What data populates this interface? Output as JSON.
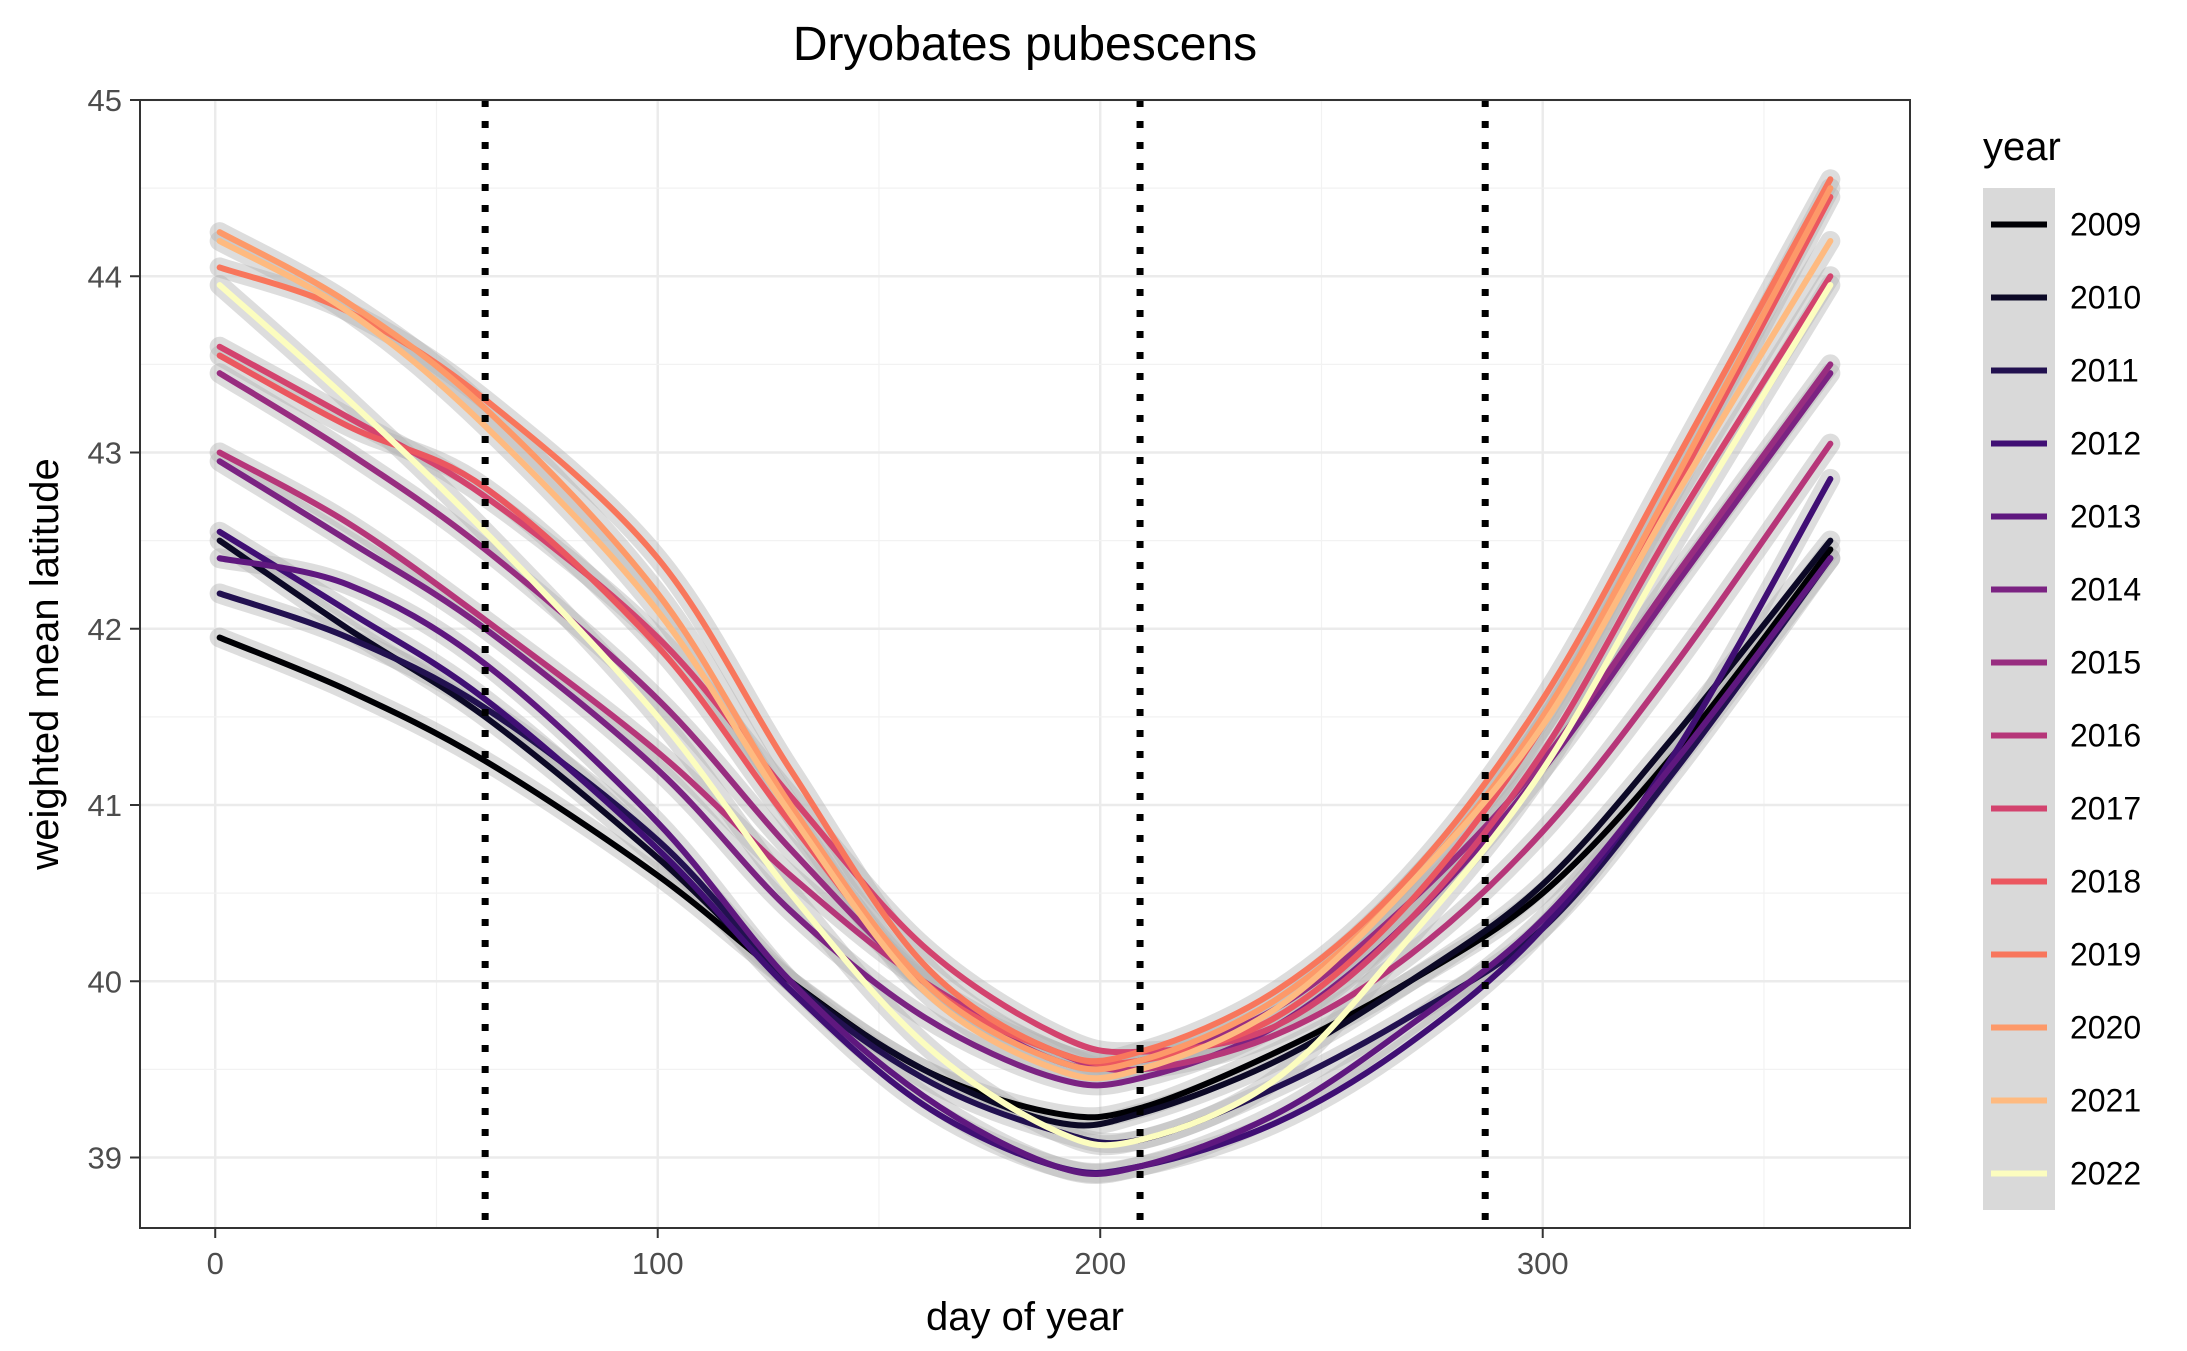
{
  "chart_data": {
    "type": "line",
    "title": "Dryobates pubescens",
    "xlabel": "day of year",
    "ylabel": "weighted mean latitude",
    "xlim": [
      -17,
      383
    ],
    "ylim": [
      38.6,
      45
    ],
    "x_ticks": [
      0,
      100,
      200,
      300
    ],
    "y_ticks": [
      39,
      40,
      41,
      42,
      43,
      44,
      45
    ],
    "grid": true,
    "confidence_bands": true,
    "vertical_lines": [
      61,
      209,
      287
    ],
    "legend": {
      "title": "year",
      "position": "right"
    },
    "x": [
      1,
      30,
      61,
      100,
      130,
      160,
      190,
      209,
      240,
      270,
      300,
      330,
      365
    ],
    "series": [
      {
        "name": "2009",
        "color": "#000004",
        "values": [
          41.95,
          41.65,
          41.25,
          40.6,
          40.0,
          39.5,
          39.25,
          39.28,
          39.6,
          40.0,
          40.5,
          41.3,
          42.45
        ]
      },
      {
        "name": "2010",
        "color": "#0C0926",
        "values": [
          42.5,
          42.0,
          41.5,
          40.7,
          40.0,
          39.5,
          39.2,
          39.25,
          39.55,
          40.0,
          40.55,
          41.4,
          42.5
        ]
      },
      {
        "name": "2011",
        "color": "#221150",
        "values": [
          42.2,
          41.95,
          41.55,
          40.8,
          40.0,
          39.45,
          39.15,
          39.1,
          39.4,
          39.8,
          40.3,
          41.2,
          42.4
        ]
      },
      {
        "name": "2012",
        "color": "#400F74",
        "values": [
          42.55,
          42.1,
          41.6,
          40.75,
          39.95,
          39.3,
          38.95,
          38.95,
          39.2,
          39.65,
          40.3,
          41.3,
          42.85
        ]
      },
      {
        "name": "2013",
        "color": "#5F187F",
        "values": [
          42.4,
          42.25,
          41.8,
          40.9,
          40.0,
          39.35,
          38.95,
          38.95,
          39.25,
          39.75,
          40.35,
          41.25,
          42.4
        ]
      },
      {
        "name": "2014",
        "color": "#7B2382",
        "values": [
          42.95,
          42.5,
          42.0,
          41.2,
          40.4,
          39.8,
          39.45,
          39.45,
          39.75,
          40.35,
          41.2,
          42.25,
          43.45
        ]
      },
      {
        "name": "2015",
        "color": "#982D80",
        "values": [
          43.45,
          43.0,
          42.45,
          41.6,
          40.75,
          40.0,
          39.55,
          39.55,
          39.85,
          40.45,
          41.25,
          42.3,
          43.5
        ]
      },
      {
        "name": "2016",
        "color": "#B63679",
        "values": [
          43.0,
          42.6,
          42.05,
          41.3,
          40.6,
          40.0,
          39.6,
          39.5,
          39.7,
          40.15,
          40.85,
          41.8,
          43.05
        ]
      },
      {
        "name": "2017",
        "color": "#D3436E",
        "values": [
          43.6,
          43.2,
          42.75,
          41.95,
          41.05,
          40.2,
          39.7,
          39.6,
          39.75,
          40.35,
          41.3,
          42.6,
          44.0
        ]
      },
      {
        "name": "2018",
        "color": "#EB5760",
        "values": [
          43.55,
          43.15,
          42.8,
          41.9,
          40.9,
          40.0,
          39.6,
          39.55,
          39.8,
          40.45,
          41.45,
          42.8,
          44.45
        ]
      },
      {
        "name": "2019",
        "color": "#F8765C",
        "values": [
          44.05,
          43.8,
          43.3,
          42.4,
          41.2,
          40.1,
          39.6,
          39.6,
          39.95,
          40.6,
          41.6,
          42.95,
          44.55
        ]
      },
      {
        "name": "2020",
        "color": "#FD9969",
        "values": [
          44.25,
          43.85,
          43.25,
          42.2,
          41.0,
          40.0,
          39.55,
          39.55,
          39.9,
          40.55,
          41.5,
          42.85,
          44.5
        ]
      },
      {
        "name": "2021",
        "color": "#FEBA80",
        "values": [
          44.2,
          43.8,
          43.15,
          42.1,
          40.95,
          39.95,
          39.5,
          39.5,
          39.85,
          40.55,
          41.45,
          42.75,
          44.2
        ]
      },
      {
        "name": "2022",
        "color": "#FCFDBF",
        "values": [
          43.95,
          43.3,
          42.55,
          41.5,
          40.5,
          39.65,
          39.15,
          39.1,
          39.45,
          40.25,
          41.2,
          42.5,
          43.95
        ]
      }
    ]
  }
}
